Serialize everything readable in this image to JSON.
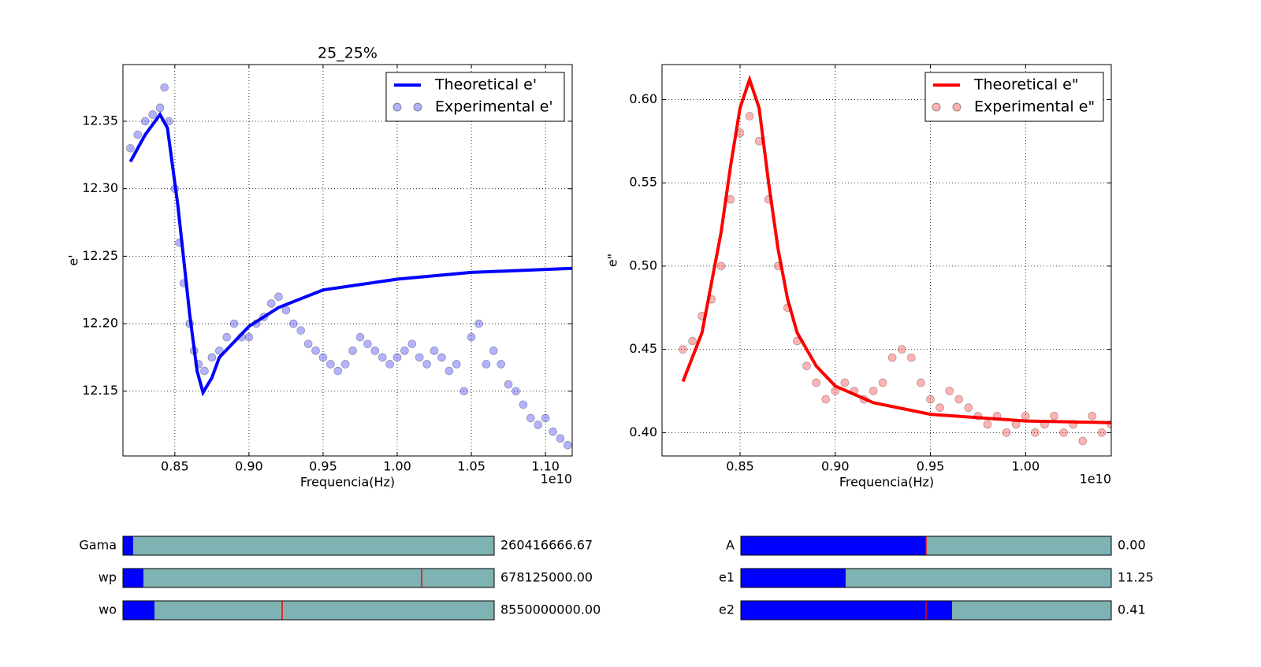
{
  "chart_data": [
    {
      "type": "line",
      "title": "25_25%",
      "x_label": "Frequencia(Hz)",
      "y_label": "e'",
      "x_offset_label": "1e10",
      "xlim": [
        0.815,
        1.118
      ],
      "ylim": [
        12.102,
        12.392
      ],
      "xticks": [
        0.85,
        {
          "value": 0.9,
          "label": "0.90"
        },
        0.95,
        {
          "value": 1.0,
          "label": "1.00"
        },
        1.05,
        {
          "value": 1.1,
          "label": "1.10"
        }
      ],
      "yticks": [
        12.15,
        {
          "value": 12.2,
          "label": "12.20"
        },
        12.25,
        {
          "value": 12.3,
          "label": "12.30"
        },
        12.35
      ],
      "grid": true,
      "legend": "upper right",
      "series": [
        {
          "name": "Theoretical e'",
          "color": "#0000ff",
          "kind": "line",
          "x": [
            0.82,
            0.83,
            0.84,
            0.845,
            0.852,
            0.86,
            0.865,
            0.869,
            0.875,
            0.88,
            0.9,
            0.92,
            0.95,
            1.0,
            1.05,
            1.118
          ],
          "values": [
            12.32,
            12.34,
            12.355,
            12.345,
            12.288,
            12.207,
            12.165,
            12.149,
            12.16,
            12.175,
            12.198,
            12.212,
            12.225,
            12.233,
            12.238,
            12.241
          ]
        },
        {
          "name": "Experimental e'",
          "color": "#0000ff",
          "kind": "scatter",
          "x": [
            0.82,
            0.825,
            0.83,
            0.835,
            0.84,
            0.843,
            0.846,
            0.85,
            0.853,
            0.856,
            0.86,
            0.863,
            0.866,
            0.87,
            0.875,
            0.88,
            0.885,
            0.89,
            0.895,
            0.9,
            0.905,
            0.91,
            0.915,
            0.92,
            0.925,
            0.93,
            0.935,
            0.94,
            0.945,
            0.95,
            0.955,
            0.96,
            0.965,
            0.97,
            0.975,
            0.98,
            0.985,
            0.99,
            0.995,
            1.0,
            1.005,
            1.01,
            1.015,
            1.02,
            1.025,
            1.03,
            1.035,
            1.04,
            1.045,
            1.05,
            1.055,
            1.06,
            1.065,
            1.07,
            1.075,
            1.08,
            1.085,
            1.09,
            1.095,
            1.1,
            1.105,
            1.11,
            1.115
          ],
          "values": [
            12.33,
            12.34,
            12.35,
            12.355,
            12.36,
            12.375,
            12.35,
            12.3,
            12.26,
            12.23,
            12.2,
            12.18,
            12.17,
            12.165,
            12.175,
            12.18,
            12.19,
            12.2,
            12.19,
            12.19,
            12.2,
            12.205,
            12.215,
            12.22,
            12.21,
            12.2,
            12.195,
            12.185,
            12.18,
            12.175,
            12.17,
            12.165,
            12.17,
            12.18,
            12.19,
            12.185,
            12.18,
            12.175,
            12.17,
            12.175,
            12.18,
            12.185,
            12.175,
            12.17,
            12.18,
            12.175,
            12.165,
            12.17,
            12.15,
            12.19,
            12.2,
            12.17,
            12.18,
            12.17,
            12.155,
            12.15,
            12.14,
            12.13,
            12.125,
            12.13,
            12.12,
            12.115,
            12.11
          ]
        }
      ]
    },
    {
      "type": "line",
      "x_label": "Frequencia(Hz)",
      "y_label": "e\"",
      "x_offset_label": "1e10",
      "xlim": [
        0.809,
        1.045
      ],
      "ylim": [
        0.386,
        0.621
      ],
      "xticks": [
        0.85,
        {
          "value": 0.9,
          "label": "0.90"
        },
        0.95,
        {
          "value": 1.0,
          "label": "1.00"
        }
      ],
      "yticks": [
        {
          "value": 0.4,
          "label": "0.40"
        },
        0.45,
        {
          "value": 0.5,
          "label": "0.50"
        },
        0.55,
        {
          "value": 0.6,
          "label": "0.60"
        }
      ],
      "grid": true,
      "legend": "upper right",
      "series": [
        {
          "name": "Theoretical e\"",
          "color": "#ff0000",
          "kind": "line",
          "x": [
            0.82,
            0.83,
            0.84,
            0.845,
            0.85,
            0.855,
            0.86,
            0.865,
            0.87,
            0.875,
            0.88,
            0.89,
            0.9,
            0.92,
            0.95,
            1.0,
            1.045
          ],
          "values": [
            0.4307,
            0.46,
            0.52,
            0.56,
            0.595,
            0.612,
            0.595,
            0.55,
            0.51,
            0.48,
            0.46,
            0.44,
            0.428,
            0.418,
            0.411,
            0.407,
            0.406
          ]
        },
        {
          "name": "Experimental e\"",
          "color": "#ff0000",
          "kind": "scatter",
          "x": [
            0.82,
            0.825,
            0.83,
            0.835,
            0.84,
            0.845,
            0.85,
            0.855,
            0.86,
            0.865,
            0.87,
            0.875,
            0.88,
            0.885,
            0.89,
            0.895,
            0.9,
            0.905,
            0.91,
            0.915,
            0.92,
            0.925,
            0.93,
            0.935,
            0.94,
            0.945,
            0.95,
            0.955,
            0.96,
            0.965,
            0.97,
            0.975,
            0.98,
            0.985,
            0.99,
            0.995,
            1.0,
            1.005,
            1.01,
            1.015,
            1.02,
            1.025,
            1.03,
            1.035,
            1.04,
            1.045
          ],
          "values": [
            0.45,
            0.455,
            0.47,
            0.48,
            0.5,
            0.54,
            0.58,
            0.59,
            0.575,
            0.54,
            0.5,
            0.475,
            0.455,
            0.44,
            0.43,
            0.42,
            0.425,
            0.43,
            0.425,
            0.42,
            0.425,
            0.43,
            0.445,
            0.45,
            0.445,
            0.43,
            0.42,
            0.415,
            0.425,
            0.42,
            0.415,
            0.41,
            0.405,
            0.41,
            0.4,
            0.405,
            0.41,
            0.4,
            0.405,
            0.41,
            0.4,
            0.405,
            0.395,
            0.41,
            0.4,
            0.405
          ]
        }
      ]
    }
  ],
  "sliders": [
    {
      "label": "Gama",
      "value": "260416666.67"
    },
    {
      "label": "wp",
      "value": "678125000.00"
    },
    {
      "label": "wo",
      "value": "8550000000.00"
    },
    {
      "label": "A",
      "value": "0.00"
    },
    {
      "label": "e1",
      "value": "11.25"
    },
    {
      "label": "e2",
      "value": "0.41"
    }
  ]
}
